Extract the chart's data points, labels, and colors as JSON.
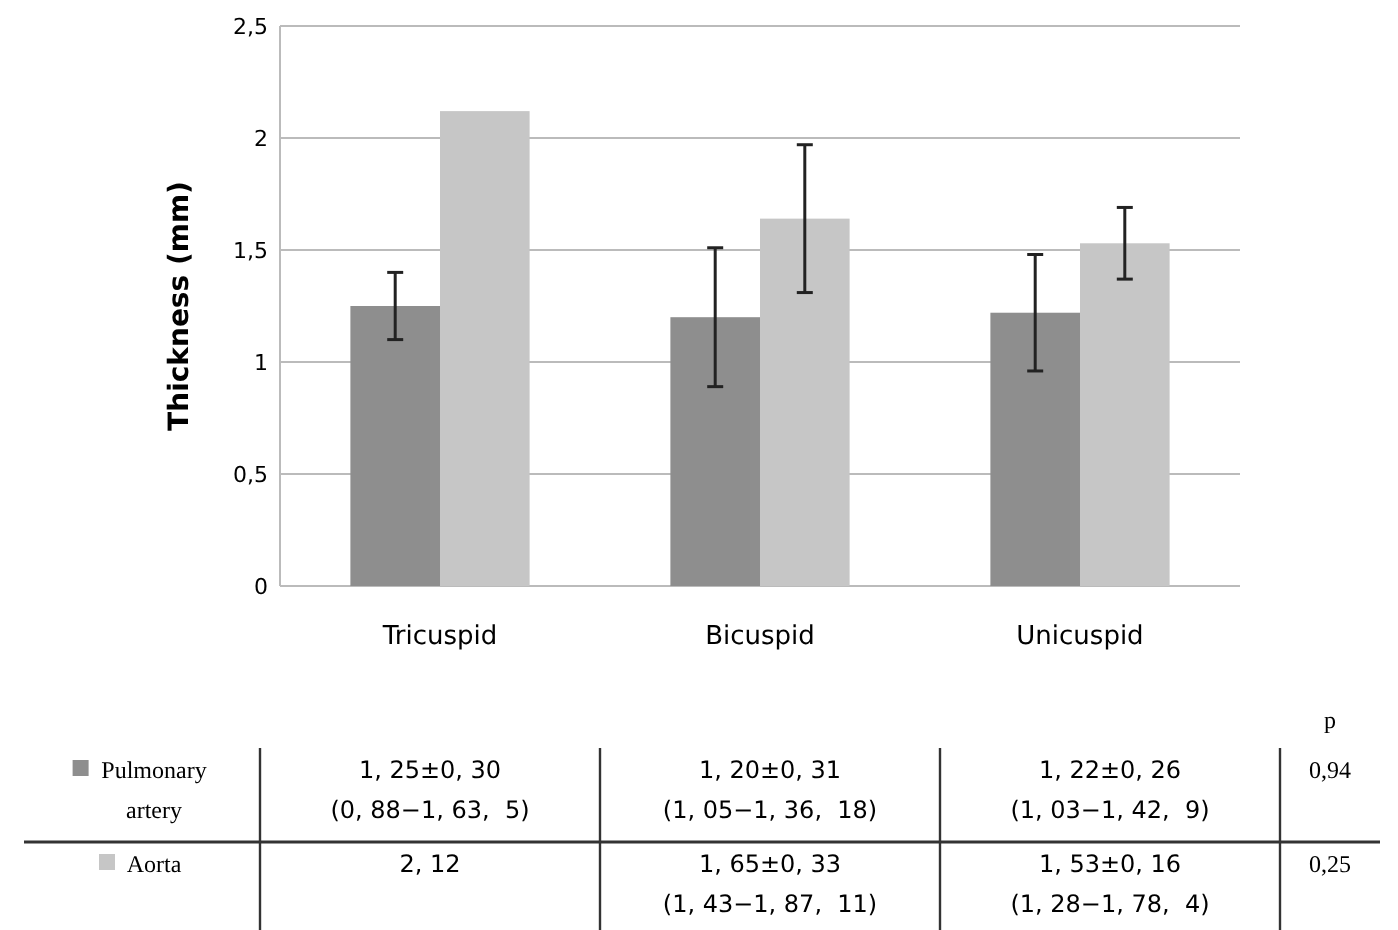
{
  "chart_data": {
    "type": "bar",
    "ylabel": "Thickness (mm)",
    "categories": [
      "Tricuspid",
      "Bicuspid",
      "Unicuspid"
    ],
    "ylim": [
      0,
      2.5
    ],
    "yticks": [
      0,
      {
        "value": 0.5,
        "label": "0,5"
      },
      1,
      {
        "value": 1.5,
        "label": "1,5"
      },
      2,
      {
        "value": 2.5,
        "label": "2,5"
      }
    ],
    "grid": "y",
    "legend": "bottom left",
    "series": [
      {
        "name": "Pulmonary artery",
        "color": "#8e8e8e",
        "values": [
          1.25,
          1.2,
          1.22
        ],
        "errors": [
          0.15,
          0.31,
          0.26
        ]
      },
      {
        "name": "Aorta",
        "color": "#c6c6c6",
        "values": [
          2.12,
          1.64,
          1.53
        ],
        "errors": [
          null,
          0.33,
          0.16
        ]
      }
    ],
    "annotations": [
      "1, 25±0, 30\n(0, 88−1, 63,  5)",
      "1, 20±0, 31\n(1, 05−1, 36,  18)",
      "1, 22±0, 26\n(1, 03−1, 42,  9)",
      "2, 12",
      "1, 65±0, 33\n(1, 43−1, 87,  11)",
      "1, 53±0, 16\n(1, 28−1, 78,  4)",
      "p",
      "0,94",
      "0,25"
    ]
  }
}
